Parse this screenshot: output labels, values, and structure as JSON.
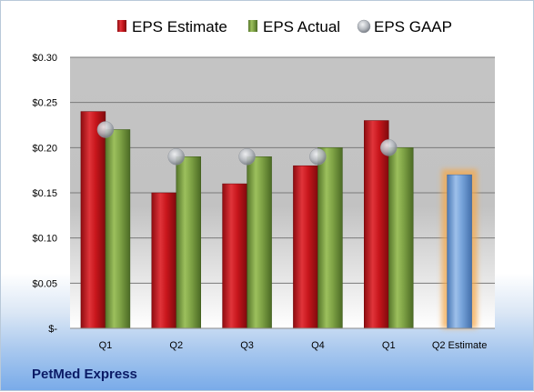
{
  "company": "PetMed Express",
  "chart_data": {
    "type": "bar",
    "categories": [
      "Q1",
      "Q2",
      "Q3",
      "Q4",
      "Q1",
      "Q2 Estimate"
    ],
    "series": [
      {
        "name": "EPS Estimate",
        "values": [
          0.24,
          0.15,
          0.16,
          0.18,
          0.23,
          null
        ],
        "color": "#c0141a"
      },
      {
        "name": "EPS Actual",
        "values": [
          0.22,
          0.19,
          0.19,
          0.2,
          0.2,
          null
        ],
        "color": "#7da144"
      },
      {
        "name": "EPS GAAP",
        "values": [
          0.22,
          0.19,
          0.19,
          0.19,
          0.2,
          null
        ],
        "color": "#a9aeb5",
        "style": "marker"
      },
      {
        "name": "",
        "values": [
          null,
          null,
          null,
          null,
          null,
          0.17
        ],
        "color": "#6c9ad4",
        "highlight": "#f5a94c"
      }
    ],
    "yticks": [
      "$-",
      "$0.05",
      "$0.10",
      "$0.15",
      "$0.20",
      "$0.25",
      "$0.30"
    ],
    "ylim": [
      0,
      0.3
    ],
    "legend_position": "top",
    "grid": true
  }
}
